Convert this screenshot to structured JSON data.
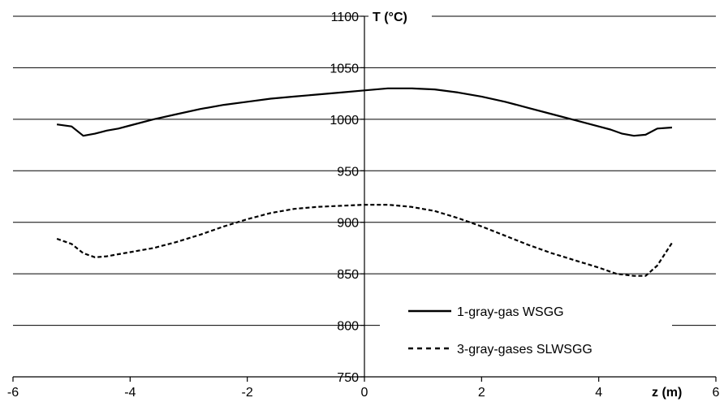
{
  "chart_data": {
    "type": "line",
    "xlabel": "z (m)",
    "ylabel": "T (°C)",
    "xlim": [
      -6,
      6
    ],
    "ylim": [
      750,
      1100
    ],
    "x_ticks": [
      "-6",
      "-4",
      "-2",
      "0",
      "2",
      "4",
      "6"
    ],
    "y_ticks": [
      "750",
      "800",
      "850",
      "900",
      "950",
      "1000",
      "1050",
      "1100"
    ],
    "grid": "horizontal",
    "legend_position": "bottom-right",
    "series": [
      {
        "name": "1-gray-gas WSGG",
        "style": "solid",
        "color": "#000000",
        "x": [
          -5.25,
          -5.0,
          -4.8,
          -4.6,
          -4.4,
          -4.2,
          -4.0,
          -3.6,
          -3.2,
          -2.8,
          -2.4,
          -2.0,
          -1.6,
          -1.2,
          -0.8,
          -0.4,
          0.0,
          0.4,
          0.8,
          1.2,
          1.6,
          2.0,
          2.4,
          2.8,
          3.2,
          3.6,
          4.0,
          4.2,
          4.4,
          4.6,
          4.8,
          5.0,
          5.25
        ],
        "values": [
          995,
          993,
          984,
          986,
          989,
          991,
          994,
          1000,
          1005,
          1010,
          1014,
          1017,
          1020,
          1022,
          1024,
          1026,
          1028,
          1030,
          1030,
          1029,
          1026,
          1022,
          1017,
          1011,
          1005,
          999,
          993,
          990,
          986,
          984,
          985,
          991,
          992
        ]
      },
      {
        "name": "3-gray-gases SLWSGG",
        "style": "dashed",
        "color": "#000000",
        "x": [
          -5.25,
          -5.0,
          -4.8,
          -4.6,
          -4.4,
          -4.2,
          -4.0,
          -3.6,
          -3.2,
          -2.8,
          -2.4,
          -2.0,
          -1.6,
          -1.2,
          -0.8,
          -0.4,
          0.0,
          0.4,
          0.8,
          1.2,
          1.6,
          2.0,
          2.4,
          2.8,
          3.2,
          3.6,
          4.0,
          4.3,
          4.6,
          4.8,
          5.0,
          5.25
        ],
        "values": [
          884,
          879,
          870,
          866,
          867,
          869,
          871,
          875,
          881,
          888,
          896,
          903,
          909,
          913,
          915,
          916,
          917,
          917,
          915,
          911,
          904,
          896,
          887,
          878,
          870,
          863,
          856,
          850,
          848,
          848,
          858,
          880
        ]
      }
    ]
  }
}
